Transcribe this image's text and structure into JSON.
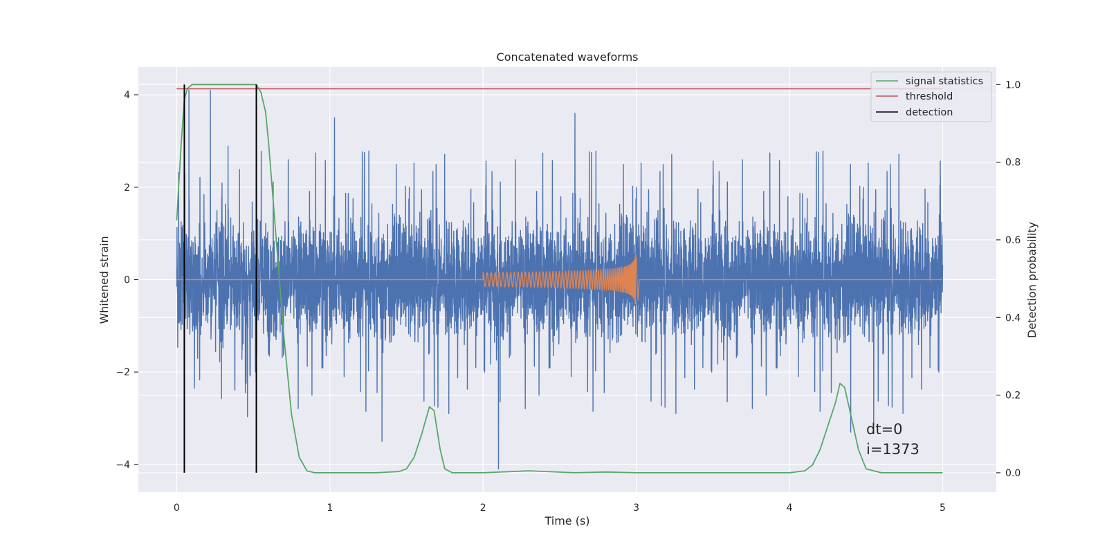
{
  "chart_data": {
    "type": "line",
    "title": "Concatenated waveforms",
    "xlabel": "Time (s)",
    "ylabel_left": "Whitened strain",
    "ylabel_right": "Detection probability",
    "xlim": [
      -0.25,
      5.35
    ],
    "ylim_left": [
      -4.6,
      4.6
    ],
    "ylim_right": [
      -0.05,
      1.045
    ],
    "x_ticks": [
      0,
      1,
      2,
      3,
      4,
      5
    ],
    "x_tick_labels": [
      "0",
      "1",
      "2",
      "3",
      "4",
      "5"
    ],
    "left_ticks": [
      -4,
      -2,
      0,
      2,
      4
    ],
    "left_tick_labels": [
      "−4",
      "−2",
      "0",
      "2",
      "4"
    ],
    "right_ticks": [
      0.0,
      0.2,
      0.4,
      0.6,
      0.8,
      1.0
    ],
    "right_tick_labels": [
      "0.0",
      "0.2",
      "0.4",
      "0.6",
      "0.8",
      "1.0"
    ],
    "grid": true,
    "legend_position": "top-right",
    "series": [
      {
        "name": "",
        "axis": "left",
        "color": "#4c72b0",
        "kind": "noise",
        "x_range": [
          0,
          5
        ],
        "envelope_typical": 2.3,
        "extremes": [
          {
            "x": 0.08,
            "y": 4.1
          },
          {
            "x": 0.22,
            "y": 4.1
          },
          {
            "x": 1.03,
            "y": 3.5
          },
          {
            "x": 2.6,
            "y": 3.6
          },
          {
            "x": 1.34,
            "y": -3.5
          },
          {
            "x": 2.1,
            "y": -4.1
          },
          {
            "x": 4.4,
            "y": -3.3
          },
          {
            "x": 4.55,
            "y": -3.1
          }
        ]
      },
      {
        "name": "",
        "axis": "left",
        "color": "#dd8452",
        "kind": "chirp",
        "x_range": [
          2.0,
          3.0
        ],
        "amplitude_start": 0.15,
        "amplitude_peak": 0.7
      },
      {
        "name": "signal statistics",
        "axis": "right",
        "color": "#55a868",
        "x": [
          0,
          0.03,
          0.05,
          0.07,
          0.1,
          0.2,
          0.3,
          0.4,
          0.48,
          0.52,
          0.55,
          0.58,
          0.6,
          0.65,
          0.7,
          0.75,
          0.8,
          0.85,
          0.9,
          1.0,
          1.3,
          1.45,
          1.5,
          1.55,
          1.6,
          1.65,
          1.68,
          1.72,
          1.75,
          1.8,
          2.0,
          2.3,
          2.6,
          2.8,
          3.0,
          3.5,
          4.0,
          4.1,
          4.15,
          4.2,
          4.25,
          4.3,
          4.33,
          4.36,
          4.4,
          4.45,
          4.5,
          4.6,
          4.8,
          5.0
        ],
        "y": [
          0.65,
          0.85,
          0.96,
          0.99,
          1.0,
          1.0,
          1.0,
          1.0,
          1.0,
          1.0,
          0.98,
          0.93,
          0.85,
          0.6,
          0.35,
          0.15,
          0.04,
          0.005,
          0.0,
          0.0,
          0.0,
          0.003,
          0.01,
          0.04,
          0.1,
          0.17,
          0.16,
          0.06,
          0.01,
          0.0,
          0.0,
          0.005,
          0.0,
          0.002,
          0.0,
          0.0,
          0.0,
          0.005,
          0.02,
          0.06,
          0.12,
          0.18,
          0.23,
          0.22,
          0.15,
          0.06,
          0.01,
          0.0,
          0.0,
          0.0
        ]
      },
      {
        "name": "threshold",
        "axis": "right",
        "color": "#c44e52",
        "x": [
          0,
          5
        ],
        "y": [
          0.989,
          0.989
        ]
      },
      {
        "name": "detection",
        "axis": "right",
        "color": "#000000",
        "vlines": [
          0.05,
          0.52
        ],
        "ymin": 0.0,
        "ymax": 1.0
      }
    ],
    "annotations": [
      "dt=0",
      "i=1373"
    ]
  }
}
